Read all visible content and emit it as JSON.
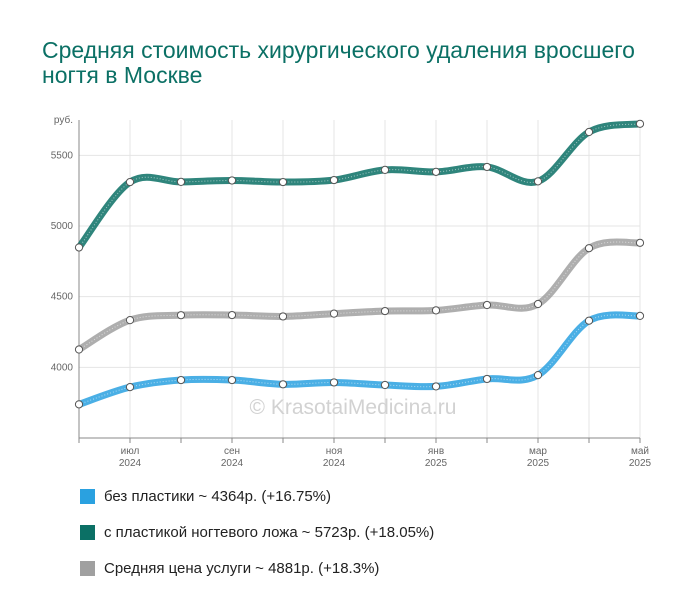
{
  "title": "Средняя стоимость хирургического удаления вросшего ногтя в Москве",
  "watermark": "© KrasotaiMedicina.ru",
  "chart_data": {
    "type": "line",
    "y_unit": "руб.",
    "ylim": [
      3500,
      5750
    ],
    "yticks": [
      4000,
      4500,
      5000,
      5500
    ],
    "grid": true,
    "x_count": 12,
    "x_labels": [
      {
        "i": 1,
        "month": "июл",
        "year": "2024"
      },
      {
        "i": 3,
        "month": "сен",
        "year": "2024"
      },
      {
        "i": 5,
        "month": "ноя",
        "year": "2024"
      },
      {
        "i": 7,
        "month": "янв",
        "year": "2025"
      },
      {
        "i": 9,
        "month": "мар",
        "year": "2025"
      },
      {
        "i": 11,
        "month": "май",
        "year": "2025"
      }
    ],
    "series": [
      {
        "name": "с пластикой ногтевого ложа",
        "summary": "~ 5723р. (+18.05%)",
        "color": "#0b7065",
        "values": [
          4848,
          5311,
          5312,
          5322,
          5311,
          5325,
          5397,
          5383,
          5418,
          5316,
          5665,
          5723
        ]
      },
      {
        "name": "Средняя цена услуги",
        "summary": "~ 4881р. (+18.3%)",
        "color": "#a0a0a0",
        "values": [
          4126,
          4334,
          4369,
          4370,
          4360,
          4380,
          4398,
          4403,
          4441,
          4448,
          4843,
          4881
        ]
      },
      {
        "name": "без пластики",
        "summary": "~ 4364р. (+16.75%)",
        "color": "#2aa1e0",
        "values": [
          3738,
          3860,
          3910,
          3910,
          3880,
          3893,
          3875,
          3865,
          3918,
          3945,
          4330,
          4364
        ]
      }
    ]
  },
  "legend_order": [
    2,
    0,
    1
  ]
}
